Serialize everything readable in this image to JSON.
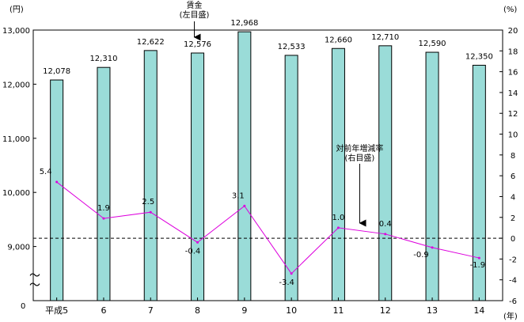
{
  "chart_data": {
    "type": "bar+line",
    "categories": [
      "平成5",
      "6",
      "7",
      "8",
      "9",
      "10",
      "11",
      "12",
      "13",
      "14"
    ],
    "series": [
      {
        "name": "賃金",
        "type": "bar",
        "axis": "left",
        "values": [
          12078,
          12310,
          12622,
          12576,
          12968,
          12533,
          12660,
          12710,
          12590,
          12350
        ],
        "labels": [
          "12,078",
          "12,310",
          "12,622",
          "12,576",
          "12,968",
          "12,533",
          "12,660",
          "12,710",
          "12,590",
          "12,350"
        ],
        "color": "#9adcd8"
      },
      {
        "name": "対前年増減率",
        "type": "line",
        "axis": "right",
        "values": [
          5.4,
          1.9,
          2.5,
          -0.4,
          3.1,
          -3.4,
          1.0,
          0.4,
          -0.9,
          -1.9
        ],
        "labels": [
          "5.4",
          "1.9",
          "2.5",
          "-0.4",
          "3.1",
          "-3.4",
          "1.0",
          "0.4",
          "-0.9",
          "-1.9"
        ],
        "color": "#dd00dd"
      }
    ],
    "left_axis": {
      "unit": "(円)",
      "ylim": [
        8000,
        13000
      ],
      "ticks": [
        9000,
        10000,
        11000,
        12000,
        13000
      ],
      "tick_labels": [
        "9,000",
        "10,000",
        "11,000",
        "12,000",
        "13,000"
      ],
      "bottom_label": "0",
      "break_symbol": "～"
    },
    "right_axis": {
      "unit": "(%)",
      "ylim": [
        -6,
        20
      ],
      "ticks": [
        -6,
        -4,
        -2,
        0,
        2,
        4,
        6,
        8,
        10,
        12,
        14,
        16,
        18,
        20
      ],
      "tick_labels": [
        "-6",
        "-4",
        "-2",
        "0",
        "2",
        "4",
        "6",
        "8",
        "10",
        "12",
        "14",
        "16",
        "18",
        "20"
      ]
    },
    "x_unit": "(年)",
    "annotations": [
      {
        "lines": [
          "賃金",
          "(左目盛)"
        ],
        "target": "bar",
        "index": 3
      },
      {
        "lines": [
          "対前年増減率",
          "(右目盛)"
        ],
        "target": "line",
        "index": 6
      }
    ],
    "zero_line": "dashed",
    "grid": false
  }
}
